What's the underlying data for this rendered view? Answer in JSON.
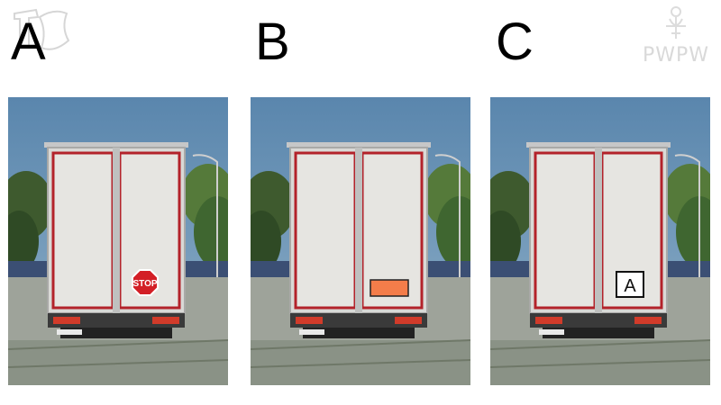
{
  "options": [
    {
      "letter": "A",
      "marking": "stop-sign",
      "sign_text": "STOP"
    },
    {
      "letter": "B",
      "marking": "orange-plate"
    },
    {
      "letter": "C",
      "marking": "white-plate",
      "plate_text": "A"
    }
  ],
  "watermark_right": {
    "text": "PWPW"
  },
  "colors": {
    "sky": "#5f87ab",
    "truck_body": "#dcdcd8",
    "red_trim": "#b3222a",
    "orange_plate": "#f47d4a",
    "stop_red": "#d31f26"
  }
}
